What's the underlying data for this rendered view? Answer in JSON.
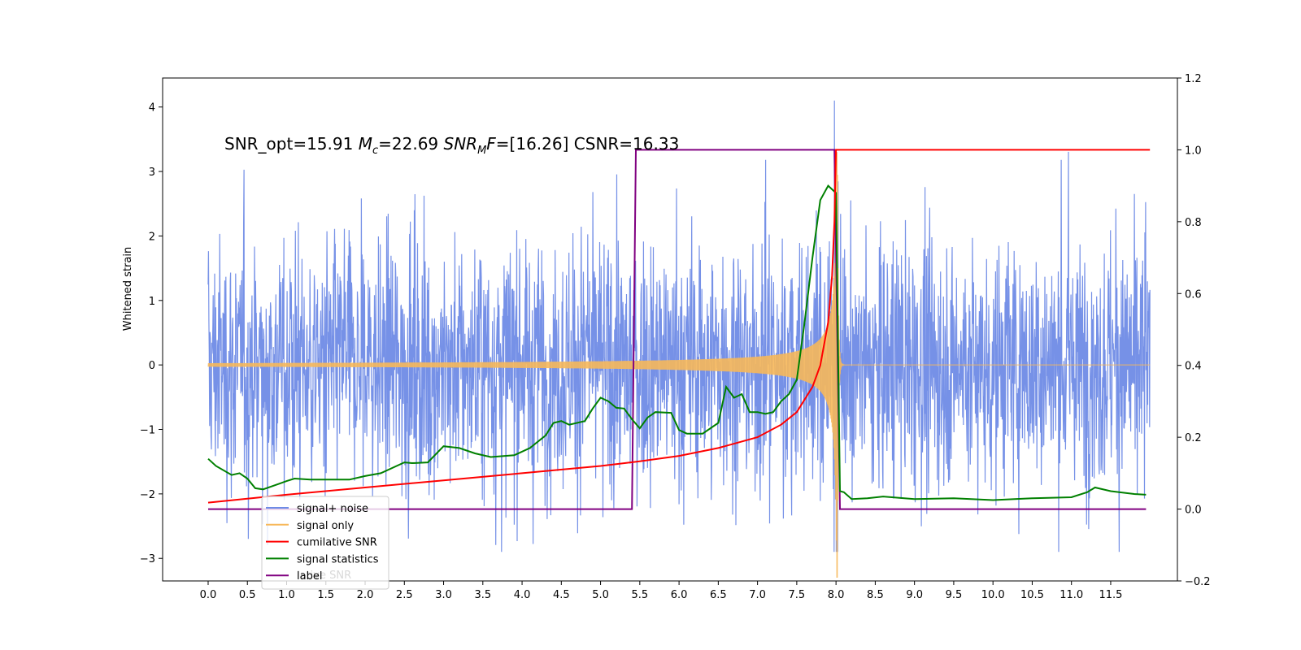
{
  "chart_data": {
    "type": "line",
    "annotation": {
      "snr_opt_text": "SNR_opt=15.91",
      "mc_symbol": "M",
      "mc_sub": "c",
      "mc_value": "=22.69",
      "snrmf_symbol": "SNR",
      "snrmf_sub": "M",
      "snrmf_f": "F",
      "snrmf_value": "=[16.26]",
      "csnr_text": "CSNR=16.33"
    },
    "left_axis": {
      "label": "Whitened strain",
      "ylim": [
        -3.35,
        4.45
      ],
      "ticks": [
        -3,
        -2,
        -1,
        0,
        1,
        2,
        3,
        4
      ],
      "tick_labels": [
        "−3",
        "−2",
        "−1",
        "0",
        "1",
        "2",
        "3",
        "4"
      ]
    },
    "right_axis": {
      "ylim": [
        -0.2,
        1.2
      ],
      "ticks": [
        -0.2,
        0.0,
        0.2,
        0.4,
        0.6,
        0.8,
        1.0,
        1.2
      ],
      "tick_labels": [
        "−0.2",
        "0.0",
        "0.2",
        "0.4",
        "0.6",
        "0.8",
        "1.0",
        "1.2"
      ]
    },
    "x_axis": {
      "xlim": [
        -0.58,
        12.35
      ],
      "ticks": [
        0,
        0.5,
        1,
        1.5,
        2,
        2.5,
        3,
        3.5,
        4,
        4.5,
        5,
        5.5,
        6,
        6.5,
        7,
        7.5,
        8,
        8.5,
        9,
        9.5,
        10,
        10.5,
        11,
        11.5
      ],
      "tick_labels": [
        "0.0",
        "0.5",
        "1.0",
        "1.5",
        "2.0",
        "2.5",
        "3.0",
        "3.5",
        "4.0",
        "4.5",
        "5.0",
        "5.5",
        "6.0",
        "6.5",
        "7.0",
        "7.5",
        "8.0",
        "8.5",
        "9.0",
        "9.5",
        "10.0",
        "10.5",
        "11.0",
        "11.5"
      ]
    },
    "series": [
      {
        "name": "signal+ noise",
        "axis": "left",
        "color": "#6f8be6",
        "x_range": [
          0,
          12.0
        ],
        "approx_amplitude": 2.0,
        "note_values": "dense noise, peak 4.1 near x=7.98, min -3.0 near x=8.02"
      },
      {
        "name": "signal only",
        "axis": "left",
        "color": "#f7b85a",
        "x_range": [
          0,
          12.0
        ],
        "merger_time": 8.02,
        "amplitude_start": 0.05,
        "amplitude_peak": 3.3
      },
      {
        "name": "cumilative SNR",
        "axis": "right",
        "color": "#ff0000",
        "x": [
          0,
          1,
          2,
          3,
          4,
          5,
          5.5,
          6,
          6.5,
          7,
          7.3,
          7.5,
          7.7,
          7.8,
          7.9,
          7.95,
          7.98,
          8.0,
          12.0
        ],
        "y": [
          0.018,
          0.04,
          0.06,
          0.08,
          0.1,
          0.12,
          0.133,
          0.148,
          0.17,
          0.2,
          0.235,
          0.27,
          0.34,
          0.4,
          0.52,
          0.65,
          0.8,
          1.0,
          1.0
        ]
      },
      {
        "name": "signal statistics",
        "axis": "right",
        "color": "#008000",
        "x": [
          0,
          0.1,
          0.3,
          0.4,
          0.5,
          0.6,
          0.7,
          0.9,
          1.0,
          1.1,
          1.3,
          1.5,
          1.8,
          2.0,
          2.2,
          2.5,
          2.6,
          2.8,
          3.0,
          3.2,
          3.4,
          3.6,
          3.9,
          4.1,
          4.3,
          4.4,
          4.5,
          4.6,
          4.8,
          4.9,
          5.0,
          5.1,
          5.2,
          5.3,
          5.4,
          5.5,
          5.6,
          5.7,
          5.9,
          6.0,
          6.1,
          6.3,
          6.5,
          6.6,
          6.7,
          6.8,
          6.9,
          7.0,
          7.1,
          7.2,
          7.3,
          7.4,
          7.5,
          7.6,
          7.7,
          7.8,
          7.9,
          8.0,
          8.05,
          8.1,
          8.2,
          8.4,
          8.6,
          9.0,
          9.5,
          10.0,
          10.5,
          11.0,
          11.2,
          11.3,
          11.5,
          11.8,
          11.95
        ],
        "y": [
          0.14,
          0.12,
          0.095,
          0.1,
          0.085,
          0.058,
          0.055,
          0.07,
          0.078,
          0.085,
          0.082,
          0.082,
          0.082,
          0.092,
          0.1,
          0.13,
          0.128,
          0.13,
          0.175,
          0.17,
          0.155,
          0.145,
          0.15,
          0.17,
          0.205,
          0.24,
          0.245,
          0.235,
          0.245,
          0.28,
          0.31,
          0.3,
          0.282,
          0.28,
          0.25,
          0.225,
          0.255,
          0.27,
          0.268,
          0.22,
          0.21,
          0.21,
          0.24,
          0.34,
          0.31,
          0.32,
          0.27,
          0.27,
          0.265,
          0.27,
          0.3,
          0.32,
          0.36,
          0.52,
          0.7,
          0.86,
          0.9,
          0.88,
          0.05,
          0.047,
          0.028,
          0.03,
          0.035,
          0.028,
          0.03,
          0.025,
          0.03,
          0.033,
          0.047,
          0.06,
          0.05,
          0.042,
          0.04
        ]
      },
      {
        "name": "label",
        "axis": "right",
        "color": "#800080",
        "x": [
          0,
          5.4,
          5.45,
          7.98,
          8.05,
          11.95
        ],
        "y": [
          0.0,
          0.0,
          1.0,
          1.0,
          0.0,
          0.0
        ]
      }
    ],
    "legend": {
      "placement": "lower-left",
      "entries": [
        {
          "label": "signal+ noise",
          "color": "#6f8be6"
        },
        {
          "label": "signal only",
          "color": "#f7b85a"
        },
        {
          "label": "cumilative SNR",
          "color": "#ff0000"
        },
        {
          "label": "signal statistics",
          "color": "#008000"
        },
        {
          "label": "label",
          "color": "#800080"
        }
      ],
      "ghost_text": "lative SNR"
    }
  }
}
